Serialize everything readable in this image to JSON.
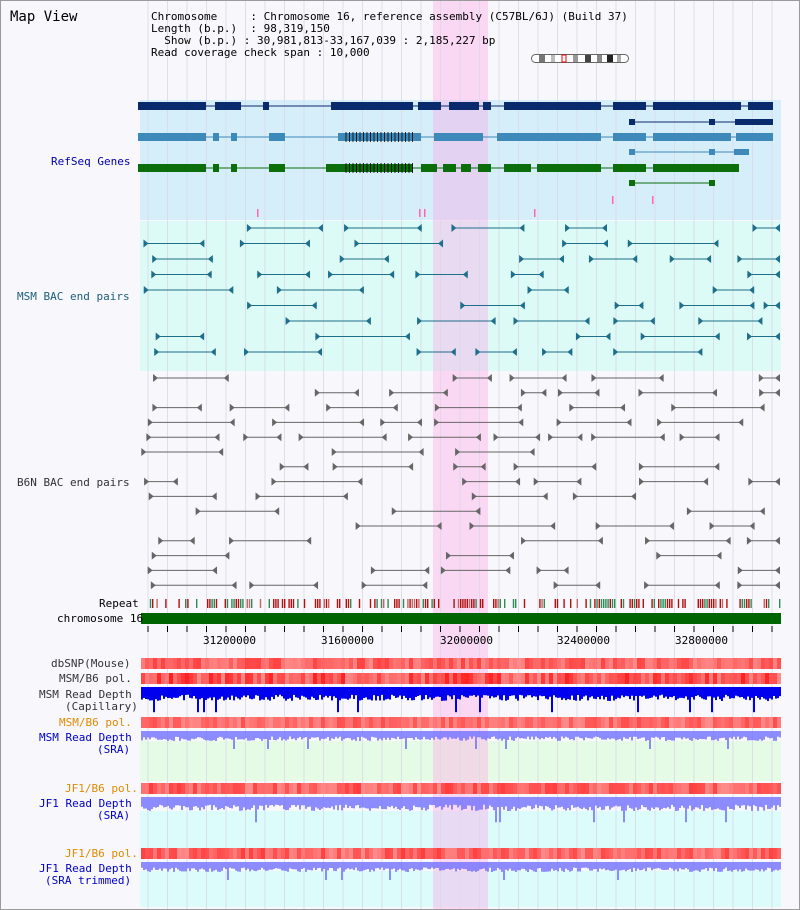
{
  "page": {
    "title": "Map View"
  },
  "info": {
    "chromosome_label": "Chromosome",
    "chromosome_value": "Chromosome 16, reference assembly (C57BL/6J) (Build 37)",
    "length_label": "Length (b.p.)",
    "length_value": "98,319,150",
    "show_label": "Show (b.p.)",
    "show_value": "30,981,813-33,167,039 : 2,185,227 bp",
    "coverage_label": "Read coverage check span",
    "coverage_value": "10,000"
  },
  "tracks": {
    "refseq": "RefSeq Genes",
    "msm_bac": "MSM BAC end pairs",
    "b6n_bac": "B6N BAC end pairs",
    "repeat": "Repeat",
    "chromosome": "chromosome 16",
    "dbsnp": "dbSNP(Mouse)",
    "msm_pol1": "MSM/B6 pol.",
    "msm_depth_cap_1": "MSM Read Depth",
    "msm_depth_cap_2": "(Capillary)",
    "msm_pol2": "MSM/B6 pol.",
    "msm_depth_sra_1": "MSM Read Depth",
    "msm_depth_sra_2": "(SRA)",
    "jf1_pol1": "JF1/B6 pol.",
    "jf1_depth_sra_1": "JF1 Read Depth",
    "jf1_depth_sra_2": "(SRA)",
    "jf1_pol2": "JF1/B6 pol.",
    "jf1_depth_trim_1": "JF1 Read Depth",
    "jf1_depth_trim_2": "(SRA trimmed)"
  },
  "axis": {
    "ticks": [
      "31200000",
      "31600000",
      "32000000",
      "32400000",
      "32800000"
    ]
  },
  "colors": {
    "highlight": "#ff9de6",
    "refseq_bg": "#d6eefa",
    "msm_bg": "#dcfaf6",
    "chrom_bar": "#006400",
    "gene_dark": "#0a2a6e",
    "gene_mid": "#3d8aba",
    "gene_green": "#0b6e0b",
    "depth_blue": "#0000ee",
    "depth_light": "#7070ff"
  }
}
